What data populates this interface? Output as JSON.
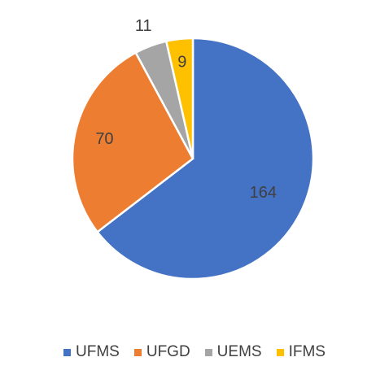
{
  "chart_data": {
    "type": "pie",
    "categories": [
      "UFMS",
      "UFGD",
      "UEMS",
      "IFMS"
    ],
    "values": [
      164,
      70,
      11,
      9
    ],
    "colors": [
      "#4472c4",
      "#ed7d31",
      "#a5a5a5",
      "#ffc000"
    ],
    "legend": "bottom"
  }
}
